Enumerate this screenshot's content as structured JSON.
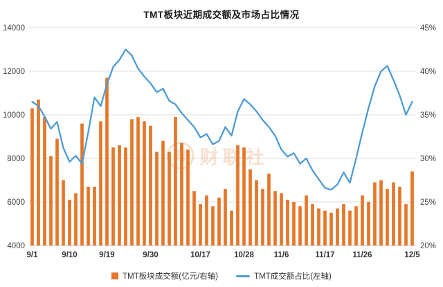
{
  "title": "TMT板块近期成交额及市场占比情况",
  "watermark": {
    "logo_char": "财",
    "text": "财联社"
  },
  "legend": [
    {
      "label": "TMT板块成交额(亿元/右轴)",
      "color": "#e4772a",
      "type": "bar"
    },
    {
      "label": "TMT成交额占比(左轴)",
      "color": "#4d9bd5",
      "type": "line"
    }
  ],
  "chart_data": {
    "type": "bar+line combo",
    "title": "TMT板块近期成交额及市场占比情况",
    "grid": true,
    "legend_position": "bottom",
    "n_points": 62,
    "y_left_axis": {
      "range": [
        4000,
        14000
      ],
      "ticks": [
        "14000",
        "12000",
        "10000",
        "8000",
        "6000",
        "4000"
      ]
    },
    "y_right_axis": {
      "range": [
        20,
        45
      ],
      "ticks": [
        "45%",
        "40%",
        "35%",
        "30%",
        "25%",
        "20%"
      ]
    },
    "x_ticks": [
      {
        "label": "9/1",
        "index": 0
      },
      {
        "label": "9/10",
        "index": 6
      },
      {
        "label": "9/19",
        "index": 12
      },
      {
        "label": "9/30",
        "index": 19
      },
      {
        "label": "10/17",
        "index": 27
      },
      {
        "label": "10/28",
        "index": 34
      },
      {
        "label": "11/6",
        "index": 40
      },
      {
        "label": "11/17",
        "index": 47
      },
      {
        "label": "11/26",
        "index": 53
      },
      {
        "label": "12/5",
        "index": 61
      }
    ],
    "bar_series": {
      "name": "TMT板块成交额(亿元/右轴)",
      "unit": "亿元",
      "color": "#e4772a",
      "axis_range": [
        4000,
        14000
      ],
      "values": [
        10300,
        10700,
        9900,
        8100,
        8900,
        7000,
        6100,
        6400,
        9600,
        6700,
        6700,
        9700,
        11700,
        8500,
        8600,
        8500,
        9800,
        9900,
        9700,
        9500,
        8300,
        8800,
        8300,
        9900,
        8700,
        8400,
        6500,
        5900,
        6300,
        5800,
        6200,
        6600,
        5600,
        8600,
        8500,
        7500,
        7000,
        6600,
        7300,
        6500,
        6400,
        6100,
        6000,
        5800,
        6300,
        5900,
        5700,
        5600,
        5500,
        5700,
        5900,
        5600,
        5800,
        6300,
        6000,
        6900,
        7000,
        6600,
        6900,
        6700,
        5900,
        7400
      ]
    },
    "line_series": {
      "name": "TMT成交额占比(左轴)",
      "unit": "%",
      "color": "#4d9bd5",
      "axis_range": [
        20,
        45
      ],
      "values": [
        36.5,
        36.0,
        34.8,
        33.4,
        34.2,
        31.2,
        29.6,
        30.3,
        29.4,
        33.0,
        37.0,
        36.0,
        38.5,
        40.5,
        41.3,
        42.5,
        41.8,
        40.3,
        39.4,
        38.6,
        37.6,
        38.0,
        36.6,
        36.2,
        35.2,
        34.4,
        33.6,
        32.4,
        32.8,
        31.6,
        32.0,
        33.6,
        32.6,
        35.4,
        36.8,
        36.2,
        35.4,
        34.4,
        33.6,
        32.6,
        31.0,
        30.2,
        30.6,
        29.4,
        30.0,
        28.6,
        27.6,
        26.6,
        26.4,
        27.0,
        28.4,
        27.2,
        30.0,
        33.0,
        35.8,
        38.3,
        40.0,
        40.6,
        39.0,
        37.2,
        35.0,
        36.5
      ]
    }
  }
}
